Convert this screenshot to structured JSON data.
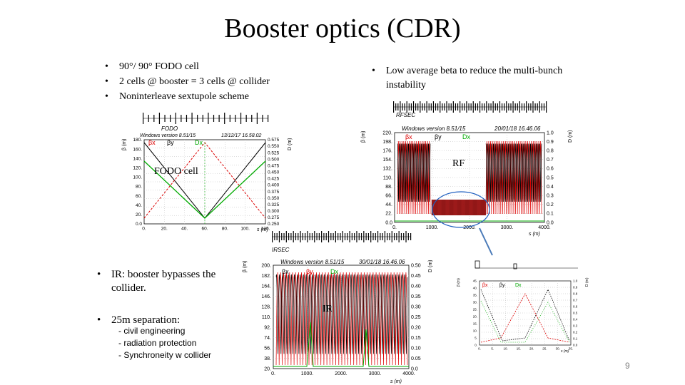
{
  "title": "Booster optics (CDR)",
  "bullets_top_left": [
    "90°/ 90° FODO cell",
    "2 cells @ booster = 3 cells @ collider",
    "Noninterleave sextupole scheme"
  ],
  "bullets_top_right": [
    "Low average beta to reduce the multi-bunch instability"
  ],
  "bullets_bottom_left": [
    "IR: booster bypasses the collider.",
    "25m separation:"
  ],
  "sub_items": [
    "- civil engineering",
    "- radiation protection",
    "- Synchroneity w collider"
  ],
  "labels": {
    "fodo": "FODO cell",
    "rf": "RF",
    "ir": "IR"
  },
  "page_number": "9",
  "plots": {
    "fodo": {
      "section": "FODO",
      "header": "Windows version 8.51/15",
      "date": "13/12/17  16.58.02",
      "beta_x": "βx",
      "beta_y": "βy",
      "disp": "Dx",
      "y_ticks": [
        "180.",
        "160.",
        "140.",
        "120.",
        "100.",
        "80.",
        "60.",
        "40.",
        "20.",
        "0.0"
      ],
      "y2_ticks": [
        "0.575",
        "0.550",
        "0.525",
        "0.500",
        "0.475",
        "0.450",
        "0.425",
        "0.400",
        "0.375",
        "0.350",
        "0.325",
        "0.300",
        "0.275",
        "0.250"
      ],
      "x_ticks": [
        "0.",
        "20.",
        "40.",
        "60.",
        "80.",
        "100.",
        "120."
      ],
      "y_label": "β (m)",
      "y2_label": "D (m)",
      "x_label": "s (m)"
    },
    "rf": {
      "section": "RFSEC",
      "header": "Windows version 8.51/15",
      "date": "20/01/18  16.46.06",
      "beta_x": "βx",
      "beta_y": "βy",
      "disp": "Dx",
      "y_ticks": [
        "220.",
        "198.",
        "176.",
        "154.",
        "132.",
        "110.",
        "88.",
        "66.",
        "44.",
        "22.",
        "0.0"
      ],
      "y2_ticks": [
        "1.0",
        "0.9",
        "0.8",
        "0.7",
        "0.6",
        "0.5",
        "0.4",
        "0.3",
        "0.2",
        "0.1",
        "0.0"
      ],
      "x_ticks": [
        "0.",
        "1000.",
        "2000.",
        "3000.",
        "4000."
      ],
      "y_label": "β (m)",
      "y2_label": "D (m)",
      "x_label": "s (m)"
    },
    "ir": {
      "section": "IRSEC",
      "header": "Windows version 8.51/15",
      "date": "30/01/18  16.46.06",
      "beta_x": "βx",
      "beta_y": "βy",
      "disp": "Dx",
      "y_ticks": [
        "200.",
        "182.",
        "164.",
        "146.",
        "128.",
        "110.",
        "92.",
        "74.",
        "56.",
        "38.",
        "20."
      ],
      "y2_ticks": [
        "0.50",
        "0.45",
        "0.40",
        "0.35",
        "0.30",
        "0.25",
        "0.20",
        "0.15",
        "0.10",
        "0.05",
        "0.0"
      ],
      "x_ticks": [
        "0.",
        "1000.",
        "2000.",
        "3000.",
        "4000."
      ],
      "y_label": "β (m)",
      "y2_label": "D (m)",
      "x_label": "s (m)"
    },
    "small": {
      "section": "",
      "header": "",
      "date": "",
      "beta_x": "βx",
      "beta_y": "βy",
      "disp": "Dx",
      "y_ticks": [
        "45.",
        "40.",
        "35.",
        "30.",
        "25.",
        "20.",
        "15.",
        "10.",
        "5.",
        "0."
      ],
      "y2_ticks": [
        "1.0",
        "0.9",
        "0.8",
        "0.7",
        "0.6",
        "0.5",
        "0.4",
        "0.3",
        "0.2",
        "0.1",
        "0.0"
      ],
      "x_ticks": [
        "0.",
        "5.",
        "10.",
        "15.",
        "20.",
        "25.",
        "30.",
        "35."
      ],
      "y_label": "β (m)",
      "y2_label": "D (m)",
      "x_label": "s (m)"
    }
  }
}
